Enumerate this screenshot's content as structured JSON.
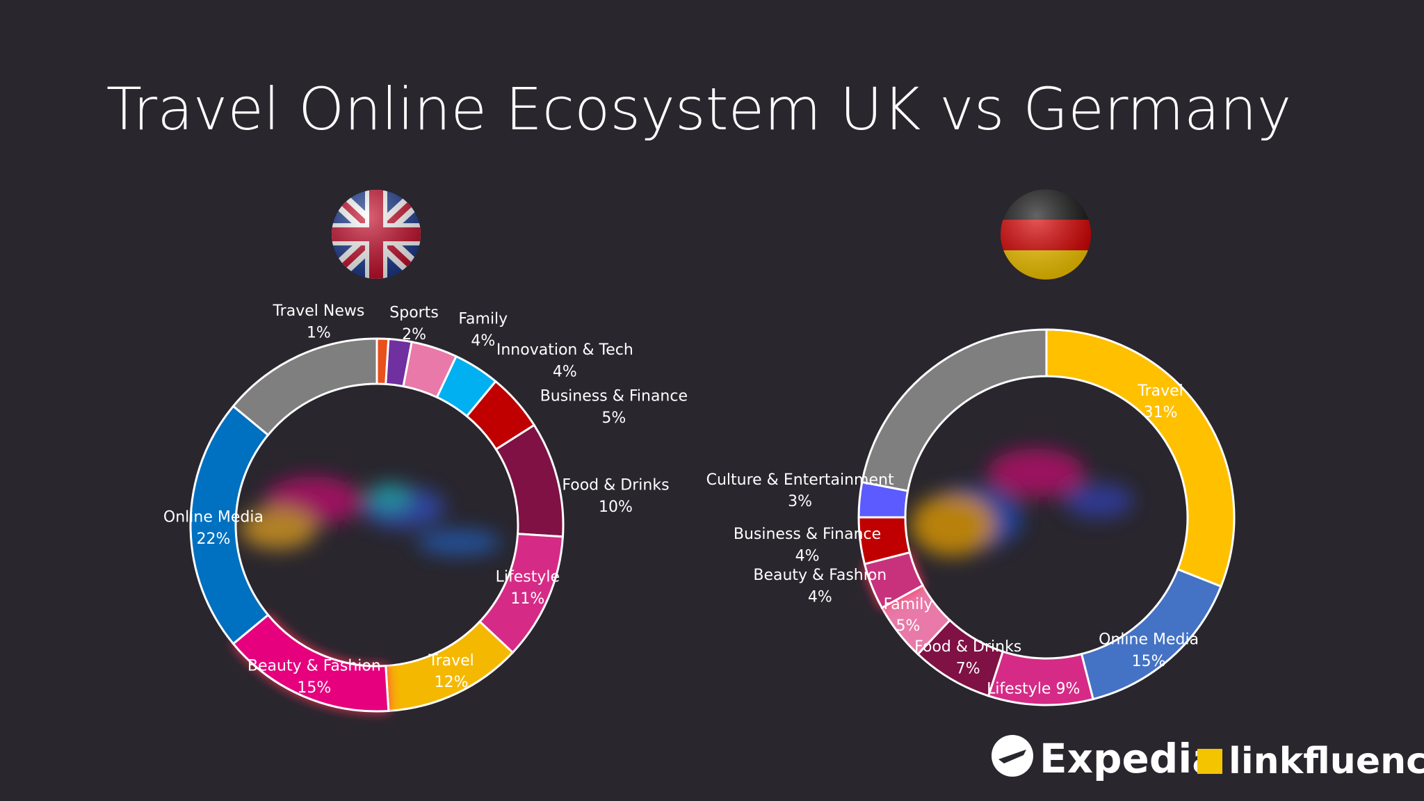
{
  "title": "Travel Online Ecosystem UK vs Germany",
  "logos": [
    "Expedia",
    "linkfluence"
  ],
  "chart_data": [
    {
      "type": "pie",
      "donut": true,
      "categories": [
        "Travel News",
        "Sports",
        "Family",
        "Innovation & Tech",
        "Business & Finance",
        "Food & Drinks",
        "Lifestyle",
        "Travel",
        "Beauty & Fashion",
        "Online Media",
        null
      ],
      "values": [
        1,
        2,
        4,
        4,
        5,
        10,
        11,
        12,
        15,
        22,
        14
      ],
      "value_labels": [
        "1%",
        "2%",
        "4%",
        "4%",
        "5%",
        "10%",
        "11%",
        "12%",
        "15%",
        "22%",
        null
      ],
      "colors": [
        "#e8501c",
        "#7030a0",
        "#e879a8",
        "#00b0f0",
        "#c00000",
        "#7f1144",
        "#d52b86",
        "#f5b800",
        "#e6007e",
        "#0070c0",
        "#7f7f7f"
      ]
    },
    {
      "type": "pie",
      "donut": true,
      "categories": [
        "Travel",
        "Online Media",
        "Lifestyle",
        "Food & Drinks",
        "Family",
        "Beauty & Fashion",
        "Business & Finance",
        "Culture & Entertainment",
        null
      ],
      "values": [
        31,
        15,
        9,
        7,
        5,
        4,
        4,
        3,
        22
      ],
      "value_labels": [
        "31%",
        "15%",
        "9%",
        "7%",
        "5%",
        "4%",
        "4%",
        "3%",
        null
      ],
      "colors": [
        "#ffc000",
        "#4472c4",
        "#d52b86",
        "#7f1144",
        "#e879a8",
        "#c8307d",
        "#c00000",
        "#5b5bff",
        "#7f7f7f"
      ]
    }
  ]
}
